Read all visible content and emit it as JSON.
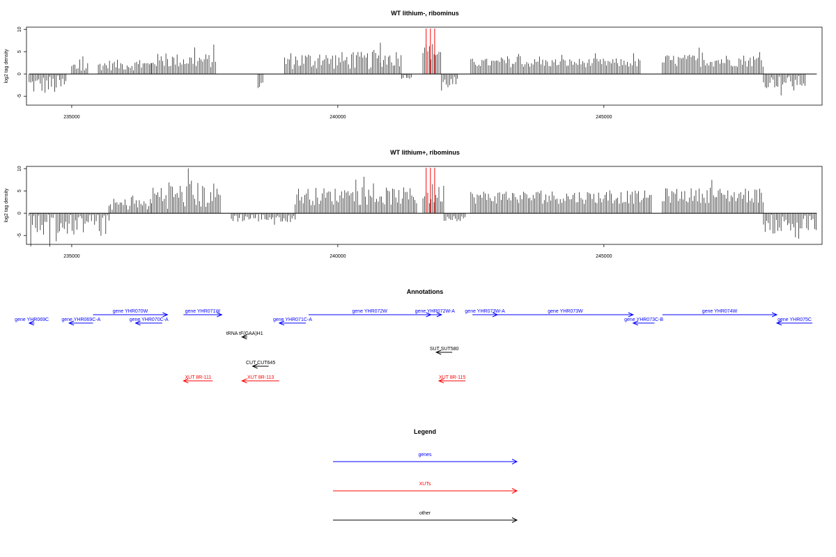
{
  "colors": {
    "genes": "#0000ff",
    "xuts": "#ff0000",
    "other": "#000000",
    "highlight": "#ff0000"
  },
  "chart_data": [
    {
      "type": "bar",
      "title": "WT lithium-, ribominus",
      "ylabel": "log2 tag density",
      "xlim": [
        234150,
        249100
      ],
      "ylim": [
        -7,
        10.5
      ],
      "xticks": [
        235000,
        240000,
        245000
      ],
      "yticks": [
        -5,
        0,
        5,
        10
      ],
      "highlight_x": [
        241660,
        241740,
        241820
      ],
      "segments": [
        {
          "from": 234200,
          "to": 234900,
          "mean": -2.5,
          "amp": 2.2
        },
        {
          "from": 235000,
          "to": 235300,
          "mean": 1.5,
          "amp": 1.5
        },
        {
          "from": 235500,
          "to": 236500,
          "mean": 2.0,
          "amp": 1.2
        },
        {
          "from": 236500,
          "to": 237700,
          "mean": 3.0,
          "amp": 1.6
        },
        {
          "from": 238500,
          "to": 238600,
          "mean": -2.5,
          "amp": 1.0
        },
        {
          "from": 239000,
          "to": 240800,
          "mean": 3.0,
          "amp": 2.0
        },
        {
          "from": 240800,
          "to": 241200,
          "mean": 3.5,
          "amp": 2.0
        },
        {
          "from": 241200,
          "to": 241400,
          "mean": -0.6,
          "amp": 0.5
        },
        {
          "from": 241600,
          "to": 241950,
          "mean": 5.0,
          "amp": 2.0
        },
        {
          "from": 241950,
          "to": 242250,
          "mean": -2.0,
          "amp": 1.4
        },
        {
          "from": 242500,
          "to": 245700,
          "mean": 2.5,
          "amp": 1.0
        },
        {
          "from": 246100,
          "to": 248000,
          "mean": 3.0,
          "amp": 1.4
        },
        {
          "from": 248000,
          "to": 248800,
          "mean": -1.8,
          "amp": 1.4
        }
      ]
    },
    {
      "type": "bar",
      "title": "WT lithium+, ribominus",
      "ylabel": "log2 tag density",
      "xlim": [
        234150,
        249100
      ],
      "ylim": [
        -7,
        10.5
      ],
      "xticks": [
        235000,
        240000,
        245000
      ],
      "yticks": [
        -5,
        0,
        5,
        10
      ],
      "highlight_x": [
        241660,
        241740,
        241820
      ],
      "segments": [
        {
          "from": 234200,
          "to": 235700,
          "mean": -2.4,
          "amp": 2.6
        },
        {
          "from": 235700,
          "to": 236500,
          "mean": 2.0,
          "amp": 1.3
        },
        {
          "from": 236500,
          "to": 237800,
          "mean": 4.0,
          "amp": 3.0
        },
        {
          "from": 238000,
          "to": 239200,
          "mean": -1.0,
          "amp": 1.0
        },
        {
          "from": 239200,
          "to": 241500,
          "mean": 3.8,
          "amp": 2.0
        },
        {
          "from": 241600,
          "to": 242000,
          "mean": 4.2,
          "amp": 2.5
        },
        {
          "from": 242000,
          "to": 242400,
          "mean": -1.0,
          "amp": 0.8
        },
        {
          "from": 242500,
          "to": 245900,
          "mean": 3.6,
          "amp": 1.5
        },
        {
          "from": 246100,
          "to": 248000,
          "mean": 4.0,
          "amp": 1.7
        },
        {
          "from": 248000,
          "to": 249000,
          "mean": -2.5,
          "amp": 2.2
        }
      ]
    }
  ],
  "annotations": {
    "title": "Annotations",
    "items": [
      {
        "label": "gene YHR069C",
        "kind": "gene",
        "from": 234200,
        "to": 234300,
        "dir": "rev",
        "row": 1
      },
      {
        "label": "gene YHR069C-A",
        "kind": "gene",
        "from": 234950,
        "to": 235400,
        "dir": "rev",
        "row": 1
      },
      {
        "label": "gene YHR070W",
        "kind": "gene",
        "from": 235400,
        "to": 236800,
        "dir": "fwd",
        "row": 0
      },
      {
        "label": "gene YHR070C-A",
        "kind": "gene",
        "from": 236200,
        "to": 236700,
        "dir": "rev",
        "row": 1
      },
      {
        "label": "gene YHR071W",
        "kind": "gene",
        "from": 237100,
        "to": 237820,
        "dir": "fwd",
        "row": 0
      },
      {
        "label": "gene YHR071C-A",
        "kind": "gene",
        "from": 238900,
        "to": 239400,
        "dir": "rev",
        "row": 1
      },
      {
        "label": "gene YHR072W",
        "kind": "gene",
        "from": 239450,
        "to": 241750,
        "dir": "fwd",
        "row": 0
      },
      {
        "label": "gene YHR072W-A",
        "kind": "gene",
        "from": 241700,
        "to": 241950,
        "dir": "fwd",
        "row": 0
      },
      {
        "label": "gene YHR073W-A",
        "kind": "gene",
        "from": 242530,
        "to": 243000,
        "dir": "fwd",
        "row": 0
      },
      {
        "label": "gene YHR073W",
        "kind": "gene",
        "from": 243000,
        "to": 245550,
        "dir": "fwd",
        "row": 0
      },
      {
        "label": "gene YHR073C-B",
        "kind": "gene",
        "from": 245550,
        "to": 245950,
        "dir": "rev",
        "row": 1
      },
      {
        "label": "gene YHR074W",
        "kind": "gene",
        "from": 246100,
        "to": 248250,
        "dir": "fwd",
        "row": 0
      },
      {
        "label": "gene YHR075C",
        "kind": "gene",
        "from": 248250,
        "to": 249000,
        "dir": "rev",
        "row": 1
      },
      {
        "label": "tRNA tF(GAA)H1",
        "kind": "other",
        "from": 238200,
        "to": 238300,
        "dir": "rev",
        "row": 2
      },
      {
        "label": "SUT SUT580",
        "kind": "other",
        "from": 241850,
        "to": 242150,
        "dir": "rev",
        "row": 3
      },
      {
        "label": "CUT CUT645",
        "kind": "other",
        "from": 238400,
        "to": 238700,
        "dir": "rev",
        "row": 4
      },
      {
        "label": "XUT 8R-111",
        "kind": "xut",
        "from": 237100,
        "to": 237650,
        "dir": "rev",
        "row": 5
      },
      {
        "label": "XUT 8R-113",
        "kind": "xut",
        "from": 238200,
        "to": 238900,
        "dir": "rev",
        "row": 5
      },
      {
        "label": "XUT 8R-115",
        "kind": "xut",
        "from": 241900,
        "to": 242400,
        "dir": "rev",
        "row": 5
      }
    ]
  },
  "legend": {
    "title": "Legend",
    "entries": [
      {
        "label": "genes",
        "kind": "gene"
      },
      {
        "label": "XUTs",
        "kind": "xut"
      },
      {
        "label": "other",
        "kind": "other"
      }
    ]
  }
}
